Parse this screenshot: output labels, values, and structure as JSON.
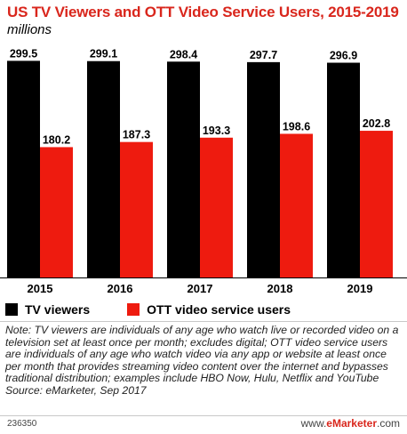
{
  "header": {
    "title": "US TV Viewers and OTT Video Service Users, 2015-2019",
    "subtitle": "millions"
  },
  "legend": {
    "tv": "TV viewers",
    "ott": "OTT video service users"
  },
  "note": "Note: TV viewers are individuals of any age who watch live or recorded video on a television set at least once per month; excludes digital; OTT video service users are individuals of any age who watch video via any app or website at least once per month that provides streaming video content over the internet and bypasses traditional distribution; examples include HBO Now, Hulu, Netflix and YouTube",
  "source": "Source: eMarketer, Sep 2017",
  "footer": {
    "id": "236350",
    "url_prefix": "www.",
    "url_brand": "eMarketer",
    "url_suffix": ".com"
  },
  "colors": {
    "tv": "#000000",
    "ott": "#ee1b0f",
    "title": "#d9261c"
  },
  "chart_data": {
    "type": "bar",
    "title": "US TV Viewers and OTT Video Service Users, 2015-2019",
    "subtitle": "millions",
    "categories": [
      "2015",
      "2016",
      "2017",
      "2018",
      "2019"
    ],
    "series": [
      {
        "name": "TV viewers",
        "values": [
          299.5,
          299.1,
          298.4,
          297.7,
          296.9
        ]
      },
      {
        "name": "OTT video service users",
        "values": [
          180.2,
          187.3,
          193.3,
          198.6,
          202.8
        ]
      }
    ],
    "value_labels": {
      "TV viewers": [
        "299.5",
        "299.1",
        "298.4",
        "297.7",
        "296.9"
      ],
      "OTT video service users": [
        "180.2",
        "187.3",
        "193.3",
        "198.6",
        "202.8"
      ]
    },
    "ylim": [
      0,
      300
    ],
    "grid": false,
    "legend_position": "bottom-left"
  }
}
